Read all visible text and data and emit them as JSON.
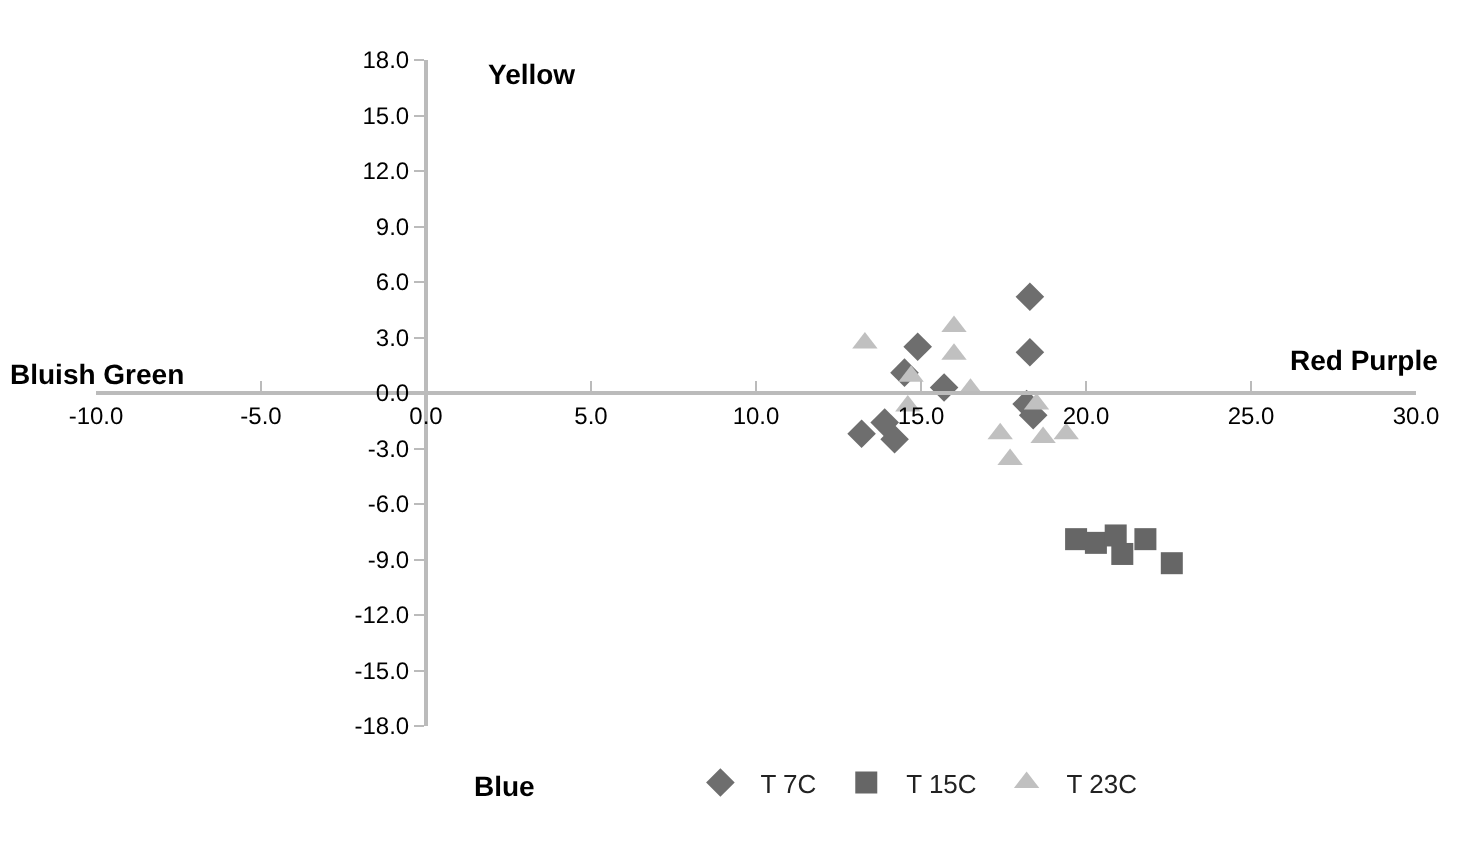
{
  "chart_data": {
    "type": "scatter",
    "annotations": [
      "Yellow",
      "Blue",
      "Bluish Green",
      "Red Purple"
    ],
    "series": [
      {
        "name": "T 7C",
        "color": "#6e6e6e",
        "marker": "diamond",
        "x": [
          18.3,
          18.3,
          14.9,
          15.7,
          14.5,
          18.2,
          18.4,
          13.2,
          13.9,
          14.2
        ],
        "values": [
          5.2,
          2.2,
          2.5,
          0.3,
          1.1,
          -0.6,
          -1.2,
          -2.2,
          -1.6,
          -2.5
        ]
      },
      {
        "name": "T 15C",
        "color": "#666666",
        "marker": "square",
        "x": [
          19.7,
          20.3,
          20.9,
          21.1,
          21.8,
          22.6
        ],
        "values": [
          -7.9,
          -8.1,
          -7.7,
          -8.7,
          -7.9,
          -9.2
        ]
      },
      {
        "name": "T 23C",
        "color": "#c0c0c0",
        "marker": "triangle",
        "x": [
          13.3,
          16.0,
          16.0,
          14.7,
          16.5,
          14.6,
          17.4,
          17.7,
          18.5,
          18.7,
          19.4
        ],
        "values": [
          2.7,
          3.6,
          2.1,
          0.9,
          0.2,
          -0.7,
          -2.2,
          -3.6,
          -0.6,
          -2.4,
          -2.2
        ]
      }
    ],
    "xlim": [
      -10,
      30
    ],
    "xticks": [
      {
        "value": -10,
        "label": "-10.0"
      },
      {
        "value": -5,
        "label": "-5.0"
      },
      {
        "value": 0,
        "label": "0.0"
      },
      {
        "value": 5,
        "label": "5.0"
      },
      {
        "value": 10,
        "label": "10.0"
      },
      {
        "value": 15,
        "label": "15.0"
      },
      {
        "value": 20,
        "label": "20.0"
      },
      {
        "value": 25,
        "label": "25.0"
      },
      {
        "value": 30,
        "label": "30.0"
      }
    ],
    "ylim": [
      -18,
      18
    ],
    "yticks": [
      {
        "value": -18,
        "label": "-18.0"
      },
      {
        "value": -15,
        "label": "-15.0"
      },
      {
        "value": -12,
        "label": "-12.0"
      },
      {
        "value": -9,
        "label": "-9.0"
      },
      {
        "value": -6,
        "label": "-6.0"
      },
      {
        "value": -3,
        "label": "-3.0"
      },
      {
        "value": 0,
        "label": "0.0"
      },
      {
        "value": 3,
        "label": "3.0"
      },
      {
        "value": 6,
        "label": "6.0"
      },
      {
        "value": 9,
        "label": "9.0"
      },
      {
        "value": 12,
        "label": "12.0"
      },
      {
        "value": 15,
        "label": "15.0"
      },
      {
        "value": 18,
        "label": "18.0"
      }
    ],
    "grid": false,
    "legend": "bottom"
  }
}
